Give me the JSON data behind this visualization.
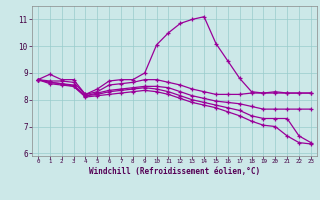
{
  "xlabel": "Windchill (Refroidissement éolien,°C)",
  "bg_color": "#cce8e8",
  "line_color": "#990099",
  "xlim": [
    -0.5,
    23.5
  ],
  "ylim": [
    5.9,
    11.5
  ],
  "yticks": [
    6,
    7,
    8,
    9,
    10,
    11
  ],
  "xticks": [
    0,
    1,
    2,
    3,
    4,
    5,
    6,
    7,
    8,
    9,
    10,
    11,
    12,
    13,
    14,
    15,
    16,
    17,
    18,
    19,
    20,
    21,
    22,
    23
  ],
  "line1_x": [
    0,
    1,
    2,
    3,
    4,
    5,
    6,
    7,
    8,
    9,
    10,
    11,
    12,
    13,
    14,
    15,
    16,
    17,
    18,
    19,
    20,
    21,
    22,
    23
  ],
  "line1_y": [
    8.75,
    8.95,
    8.75,
    8.75,
    8.2,
    8.4,
    8.7,
    8.75,
    8.75,
    9.0,
    10.05,
    10.5,
    10.85,
    11.0,
    11.1,
    10.1,
    9.45,
    8.8,
    8.3,
    8.25,
    8.3,
    8.25,
    8.25,
    8.25
  ],
  "line2_x": [
    0,
    1,
    2,
    3,
    4,
    5,
    6,
    7,
    8,
    9,
    10,
    11,
    12,
    13,
    14,
    15,
    16,
    17,
    18,
    19,
    20,
    21,
    22,
    23
  ],
  "line2_y": [
    8.75,
    8.7,
    8.7,
    8.65,
    8.2,
    8.3,
    8.55,
    8.6,
    8.65,
    8.75,
    8.75,
    8.65,
    8.55,
    8.4,
    8.3,
    8.2,
    8.2,
    8.2,
    8.25,
    8.25,
    8.25,
    8.25,
    8.25,
    8.25
  ],
  "line3_x": [
    0,
    1,
    2,
    3,
    4,
    5,
    6,
    7,
    8,
    9,
    10,
    11,
    12,
    13,
    14,
    15,
    16,
    17,
    18,
    19,
    20,
    21,
    22,
    23
  ],
  "line3_y": [
    8.75,
    8.65,
    8.6,
    8.55,
    8.15,
    8.25,
    8.35,
    8.4,
    8.45,
    8.5,
    8.5,
    8.45,
    8.3,
    8.15,
    8.05,
    7.95,
    7.9,
    7.85,
    7.75,
    7.65,
    7.65,
    7.65,
    7.65,
    7.65
  ],
  "line4_x": [
    0,
    1,
    2,
    3,
    4,
    5,
    6,
    7,
    8,
    9,
    10,
    11,
    12,
    13,
    14,
    15,
    16,
    17,
    18,
    19,
    20,
    21,
    22,
    23
  ],
  "line4_y": [
    8.75,
    8.65,
    8.6,
    8.5,
    8.15,
    8.2,
    8.3,
    8.35,
    8.4,
    8.45,
    8.4,
    8.3,
    8.15,
    8.0,
    7.9,
    7.8,
    7.7,
    7.6,
    7.4,
    7.3,
    7.3,
    7.3,
    6.65,
    6.4
  ],
  "line5_x": [
    0,
    1,
    2,
    3,
    4,
    5,
    6,
    7,
    8,
    9,
    10,
    11,
    12,
    13,
    14,
    15,
    16,
    17,
    18,
    19,
    20,
    21,
    22,
    23
  ],
  "line5_y": [
    8.75,
    8.6,
    8.55,
    8.5,
    8.1,
    8.15,
    8.2,
    8.25,
    8.3,
    8.35,
    8.3,
    8.2,
    8.05,
    7.9,
    7.8,
    7.7,
    7.55,
    7.4,
    7.2,
    7.05,
    7.0,
    6.65,
    6.4,
    6.35
  ]
}
